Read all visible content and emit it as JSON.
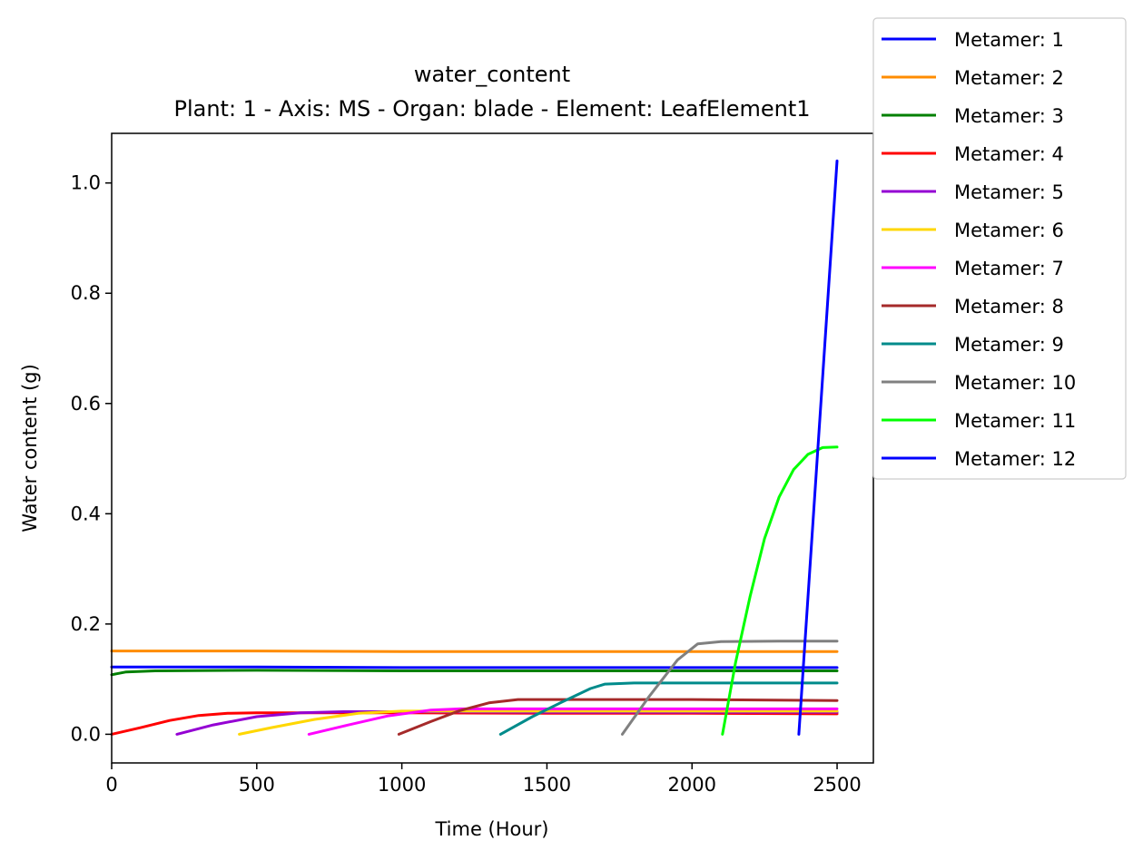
{
  "chart_data": {
    "type": "line",
    "title": "water_content",
    "subtitle": "Plant: 1 - Axis: MS - Organ: blade - Element: LeafElement1",
    "xlabel": "Time (Hour)",
    "ylabel": "Water content (g)",
    "xlim": [
      0,
      2625
    ],
    "ylim": [
      -0.052,
      1.09
    ],
    "xticks": [
      0,
      500,
      1000,
      1500,
      2000,
      2500
    ],
    "xtick_labels": [
      "0",
      "500",
      "1000",
      "1500",
      "2000",
      "2500"
    ],
    "yticks": [
      0.0,
      0.2,
      0.4,
      0.6,
      0.8,
      1.0
    ],
    "ytick_labels": [
      "0.0",
      "0.2",
      "0.4",
      "0.6",
      "0.8",
      "1.0"
    ],
    "grid": false,
    "legend_position": "outside top-right",
    "series": [
      {
        "name": "Metamer: 1",
        "color": "#0000ff",
        "points": [
          [
            0,
            0.122
          ],
          [
            500,
            0.122
          ],
          [
            1000,
            0.121
          ],
          [
            1500,
            0.121
          ],
          [
            2000,
            0.121
          ],
          [
            2500,
            0.121
          ]
        ]
      },
      {
        "name": "Metamer: 2",
        "color": "#ff8c00",
        "points": [
          [
            0,
            0.151
          ],
          [
            500,
            0.151
          ],
          [
            1000,
            0.15
          ],
          [
            1500,
            0.15
          ],
          [
            2000,
            0.15
          ],
          [
            2500,
            0.15
          ]
        ]
      },
      {
        "name": "Metamer: 3",
        "color": "#008000",
        "points": [
          [
            0,
            0.108
          ],
          [
            50,
            0.113
          ],
          [
            150,
            0.115
          ],
          [
            500,
            0.116
          ],
          [
            1000,
            0.115
          ],
          [
            1500,
            0.115
          ],
          [
            2000,
            0.115
          ],
          [
            2500,
            0.115
          ]
        ]
      },
      {
        "name": "Metamer: 4",
        "color": "#ff0000",
        "points": [
          [
            0,
            0.0
          ],
          [
            100,
            0.012
          ],
          [
            200,
            0.025
          ],
          [
            300,
            0.034
          ],
          [
            400,
            0.038
          ],
          [
            500,
            0.039
          ],
          [
            1000,
            0.039
          ],
          [
            1500,
            0.038
          ],
          [
            2000,
            0.038
          ],
          [
            2500,
            0.037
          ]
        ]
      },
      {
        "name": "Metamer: 5",
        "color": "#9400d3",
        "points": [
          [
            225,
            0.0
          ],
          [
            350,
            0.017
          ],
          [
            500,
            0.032
          ],
          [
            650,
            0.039
          ],
          [
            800,
            0.041
          ],
          [
            1000,
            0.041
          ],
          [
            1500,
            0.04
          ],
          [
            2000,
            0.04
          ],
          [
            2500,
            0.04
          ]
        ]
      },
      {
        "name": "Metamer: 6",
        "color": "#ffd700",
        "points": [
          [
            440,
            0.0
          ],
          [
            550,
            0.012
          ],
          [
            700,
            0.027
          ],
          [
            850,
            0.038
          ],
          [
            1000,
            0.042
          ],
          [
            1500,
            0.042
          ],
          [
            2000,
            0.042
          ],
          [
            2500,
            0.042
          ]
        ]
      },
      {
        "name": "Metamer: 7",
        "color": "#ff00ff",
        "points": [
          [
            680,
            0.0
          ],
          [
            800,
            0.015
          ],
          [
            950,
            0.033
          ],
          [
            1100,
            0.044
          ],
          [
            1200,
            0.046
          ],
          [
            1500,
            0.046
          ],
          [
            2000,
            0.046
          ],
          [
            2500,
            0.046
          ]
        ]
      },
      {
        "name": "Metamer: 8",
        "color": "#a52a2a",
        "points": [
          [
            990,
            0.0
          ],
          [
            1100,
            0.023
          ],
          [
            1200,
            0.043
          ],
          [
            1300,
            0.057
          ],
          [
            1400,
            0.063
          ],
          [
            1500,
            0.063
          ],
          [
            2000,
            0.063
          ],
          [
            2500,
            0.061
          ]
        ]
      },
      {
        "name": "Metamer: 9",
        "color": "#008b8b",
        "points": [
          [
            1340,
            0.0
          ],
          [
            1450,
            0.032
          ],
          [
            1550,
            0.058
          ],
          [
            1650,
            0.083
          ],
          [
            1700,
            0.091
          ],
          [
            1800,
            0.093
          ],
          [
            2000,
            0.093
          ],
          [
            2500,
            0.093
          ]
        ]
      },
      {
        "name": "Metamer: 10",
        "color": "#808080",
        "points": [
          [
            1760,
            0.0
          ],
          [
            1850,
            0.067
          ],
          [
            1950,
            0.135
          ],
          [
            2020,
            0.164
          ],
          [
            2100,
            0.168
          ],
          [
            2300,
            0.169
          ],
          [
            2500,
            0.169
          ]
        ]
      },
      {
        "name": "Metamer: 11",
        "color": "#00ff00",
        "points": [
          [
            2105,
            0.0
          ],
          [
            2150,
            0.13
          ],
          [
            2200,
            0.25
          ],
          [
            2250,
            0.355
          ],
          [
            2300,
            0.43
          ],
          [
            2350,
            0.48
          ],
          [
            2400,
            0.508
          ],
          [
            2450,
            0.52
          ],
          [
            2500,
            0.521
          ]
        ]
      },
      {
        "name": "Metamer: 12",
        "color": "#0000ff",
        "points": [
          [
            2368,
            0.0
          ],
          [
            2500,
            1.04
          ]
        ]
      }
    ]
  }
}
